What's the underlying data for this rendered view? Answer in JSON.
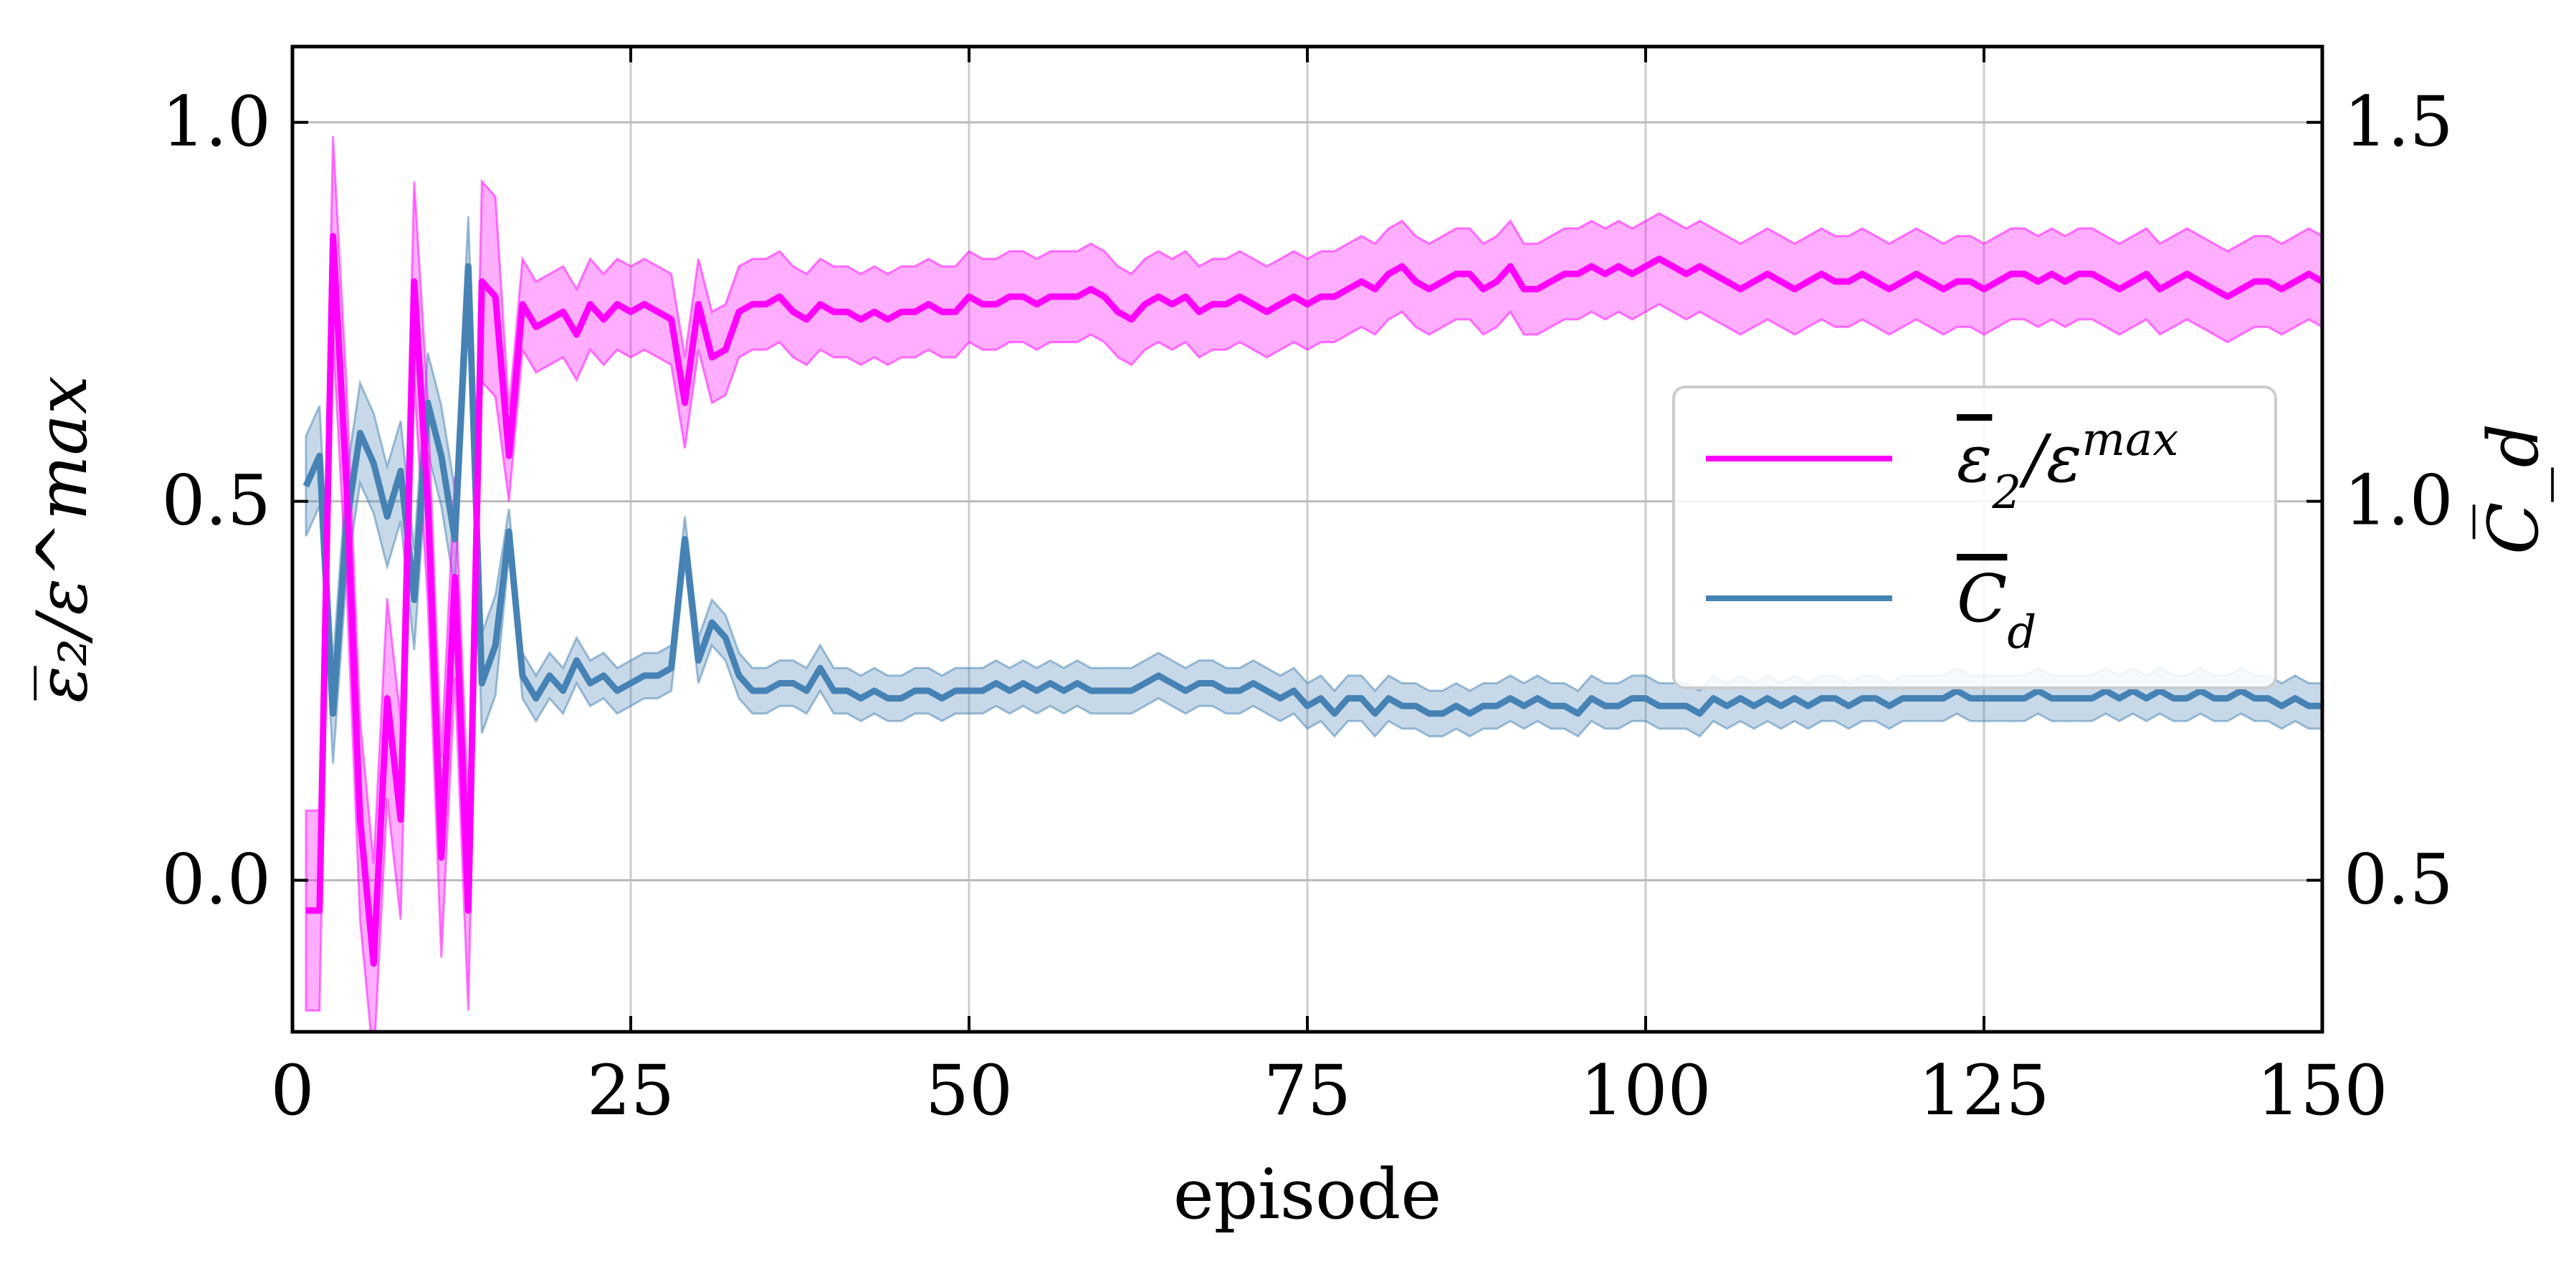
{
  "chart_data": {
    "type": "line",
    "xlabel": "episode",
    "ylabel_left": "ε̅₂/ε^max",
    "ylabel_right": "C̅_d",
    "xlim": [
      0,
      150
    ],
    "ylim_left": [
      -0.2,
      1.1
    ],
    "ylim_right": [
      0.3,
      1.6
    ],
    "x_ticks": [
      "0",
      "25",
      "50",
      "75",
      "100",
      "125",
      "150"
    ],
    "y_left_ticks": [
      "0.0",
      "0.5",
      "1.0"
    ],
    "y_right_ticks": [
      "0.5",
      "1.0",
      "1.5"
    ],
    "grid": true,
    "legend_position": "center-right",
    "legend": {
      "eps": {
        "base": "ε",
        "sub": "2",
        "mid": "/ε",
        "sup": "max"
      },
      "cd": {
        "base": "C",
        "sub": "d"
      }
    },
    "series": [
      {
        "name": "ε̅₂/ε^max",
        "axis": "left",
        "color": "#ff00ff",
        "x": [
          1,
          2,
          3,
          4,
          5,
          6,
          7,
          8,
          9,
          10,
          11,
          12,
          13,
          14,
          15,
          16,
          17,
          18,
          19,
          20,
          21,
          22,
          23,
          24,
          25,
          26,
          27,
          28,
          29,
          30,
          31,
          32,
          33,
          34,
          35,
          36,
          37,
          38,
          39,
          40,
          41,
          42,
          43,
          44,
          45,
          46,
          47,
          48,
          49,
          50,
          51,
          52,
          53,
          54,
          55,
          56,
          57,
          58,
          59,
          60,
          61,
          62,
          63,
          64,
          65,
          66,
          67,
          68,
          69,
          70,
          71,
          72,
          73,
          74,
          75,
          76,
          77,
          78,
          79,
          80,
          81,
          82,
          83,
          84,
          85,
          86,
          87,
          88,
          89,
          90,
          91,
          92,
          93,
          94,
          95,
          96,
          97,
          98,
          99,
          100,
          101,
          102,
          103,
          104,
          105,
          106,
          107,
          108,
          109,
          110,
          111,
          112,
          113,
          114,
          115,
          116,
          117,
          118,
          119,
          120,
          121,
          122,
          123,
          124,
          125,
          126,
          127,
          128,
          129,
          130,
          131,
          132,
          133,
          134,
          135,
          136,
          137,
          138,
          139,
          140,
          141,
          142,
          143,
          144,
          145,
          146,
          147,
          148,
          149,
          150
        ],
        "values": [
          -0.04,
          -0.04,
          0.85,
          0.52,
          0.08,
          -0.11,
          0.24,
          0.08,
          0.79,
          0.5,
          0.03,
          0.4,
          -0.04,
          0.79,
          0.77,
          0.56,
          0.76,
          0.73,
          0.74,
          0.75,
          0.72,
          0.76,
          0.74,
          0.76,
          0.75,
          0.76,
          0.75,
          0.74,
          0.63,
          0.76,
          0.69,
          0.7,
          0.75,
          0.76,
          0.76,
          0.77,
          0.75,
          0.74,
          0.76,
          0.75,
          0.75,
          0.74,
          0.75,
          0.74,
          0.75,
          0.75,
          0.76,
          0.75,
          0.75,
          0.77,
          0.76,
          0.76,
          0.77,
          0.77,
          0.76,
          0.77,
          0.77,
          0.77,
          0.78,
          0.77,
          0.75,
          0.74,
          0.76,
          0.77,
          0.76,
          0.77,
          0.75,
          0.76,
          0.76,
          0.77,
          0.76,
          0.75,
          0.76,
          0.77,
          0.76,
          0.77,
          0.77,
          0.78,
          0.79,
          0.78,
          0.8,
          0.81,
          0.79,
          0.78,
          0.79,
          0.8,
          0.8,
          0.78,
          0.79,
          0.81,
          0.78,
          0.78,
          0.79,
          0.8,
          0.8,
          0.81,
          0.8,
          0.81,
          0.8,
          0.81,
          0.82,
          0.81,
          0.8,
          0.81,
          0.8,
          0.79,
          0.78,
          0.79,
          0.8,
          0.79,
          0.78,
          0.79,
          0.8,
          0.79,
          0.79,
          0.8,
          0.79,
          0.78,
          0.79,
          0.8,
          0.79,
          0.78,
          0.79,
          0.79,
          0.78,
          0.79,
          0.8,
          0.8,
          0.79,
          0.8,
          0.79,
          0.8,
          0.8,
          0.79,
          0.78,
          0.79,
          0.8,
          0.78,
          0.79,
          0.8,
          0.79,
          0.78,
          0.77,
          0.78,
          0.79,
          0.79,
          0.78,
          0.79,
          0.8,
          0.79
        ],
        "band_halfwidth": 0.06
      },
      {
        "name": "C̅_d",
        "axis": "right",
        "color": "#4682b4",
        "x": [
          1,
          2,
          3,
          4,
          5,
          6,
          7,
          8,
          9,
          10,
          11,
          12,
          13,
          14,
          15,
          16,
          17,
          18,
          19,
          20,
          21,
          22,
          23,
          24,
          25,
          26,
          27,
          28,
          29,
          30,
          31,
          32,
          33,
          34,
          35,
          36,
          37,
          38,
          39,
          40,
          41,
          42,
          43,
          44,
          45,
          46,
          47,
          48,
          49,
          50,
          51,
          52,
          53,
          54,
          55,
          56,
          57,
          58,
          59,
          60,
          61,
          62,
          63,
          64,
          65,
          66,
          67,
          68,
          69,
          70,
          71,
          72,
          73,
          74,
          75,
          76,
          77,
          78,
          79,
          80,
          81,
          82,
          83,
          84,
          85,
          86,
          87,
          88,
          89,
          90,
          91,
          92,
          93,
          94,
          95,
          96,
          97,
          98,
          99,
          100,
          101,
          102,
          103,
          104,
          105,
          106,
          107,
          108,
          109,
          110,
          111,
          112,
          113,
          114,
          115,
          116,
          117,
          118,
          119,
          120,
          121,
          122,
          123,
          124,
          125,
          126,
          127,
          128,
          129,
          130,
          131,
          132,
          133,
          134,
          135,
          136,
          137,
          138,
          139,
          140,
          141,
          142,
          143,
          144,
          145,
          146,
          147,
          148,
          149,
          150
        ],
        "values": [
          1.02,
          1.06,
          0.72,
          0.97,
          1.09,
          1.05,
          0.98,
          1.04,
          0.87,
          1.13,
          1.06,
          0.95,
          1.31,
          0.76,
          0.81,
          0.96,
          0.77,
          0.74,
          0.77,
          0.75,
          0.79,
          0.76,
          0.77,
          0.75,
          0.76,
          0.77,
          0.77,
          0.78,
          0.95,
          0.79,
          0.84,
          0.82,
          0.77,
          0.75,
          0.75,
          0.76,
          0.76,
          0.75,
          0.78,
          0.75,
          0.75,
          0.74,
          0.75,
          0.74,
          0.74,
          0.75,
          0.75,
          0.74,
          0.75,
          0.75,
          0.75,
          0.76,
          0.75,
          0.76,
          0.75,
          0.76,
          0.75,
          0.76,
          0.75,
          0.75,
          0.75,
          0.75,
          0.76,
          0.77,
          0.76,
          0.75,
          0.76,
          0.76,
          0.75,
          0.75,
          0.76,
          0.75,
          0.74,
          0.75,
          0.73,
          0.74,
          0.72,
          0.74,
          0.74,
          0.72,
          0.74,
          0.73,
          0.73,
          0.72,
          0.72,
          0.73,
          0.72,
          0.73,
          0.73,
          0.74,
          0.73,
          0.74,
          0.73,
          0.73,
          0.72,
          0.74,
          0.73,
          0.73,
          0.74,
          0.74,
          0.73,
          0.73,
          0.73,
          0.72,
          0.74,
          0.73,
          0.74,
          0.73,
          0.74,
          0.73,
          0.74,
          0.73,
          0.74,
          0.74,
          0.73,
          0.74,
          0.74,
          0.73,
          0.74,
          0.74,
          0.74,
          0.74,
          0.75,
          0.74,
          0.74,
          0.74,
          0.74,
          0.74,
          0.75,
          0.74,
          0.74,
          0.74,
          0.74,
          0.75,
          0.74,
          0.75,
          0.74,
          0.75,
          0.74,
          0.74,
          0.75,
          0.74,
          0.74,
          0.75,
          0.74,
          0.74,
          0.73,
          0.74,
          0.73,
          0.73
        ],
        "band_halfwidth": 0.03
      }
    ]
  }
}
